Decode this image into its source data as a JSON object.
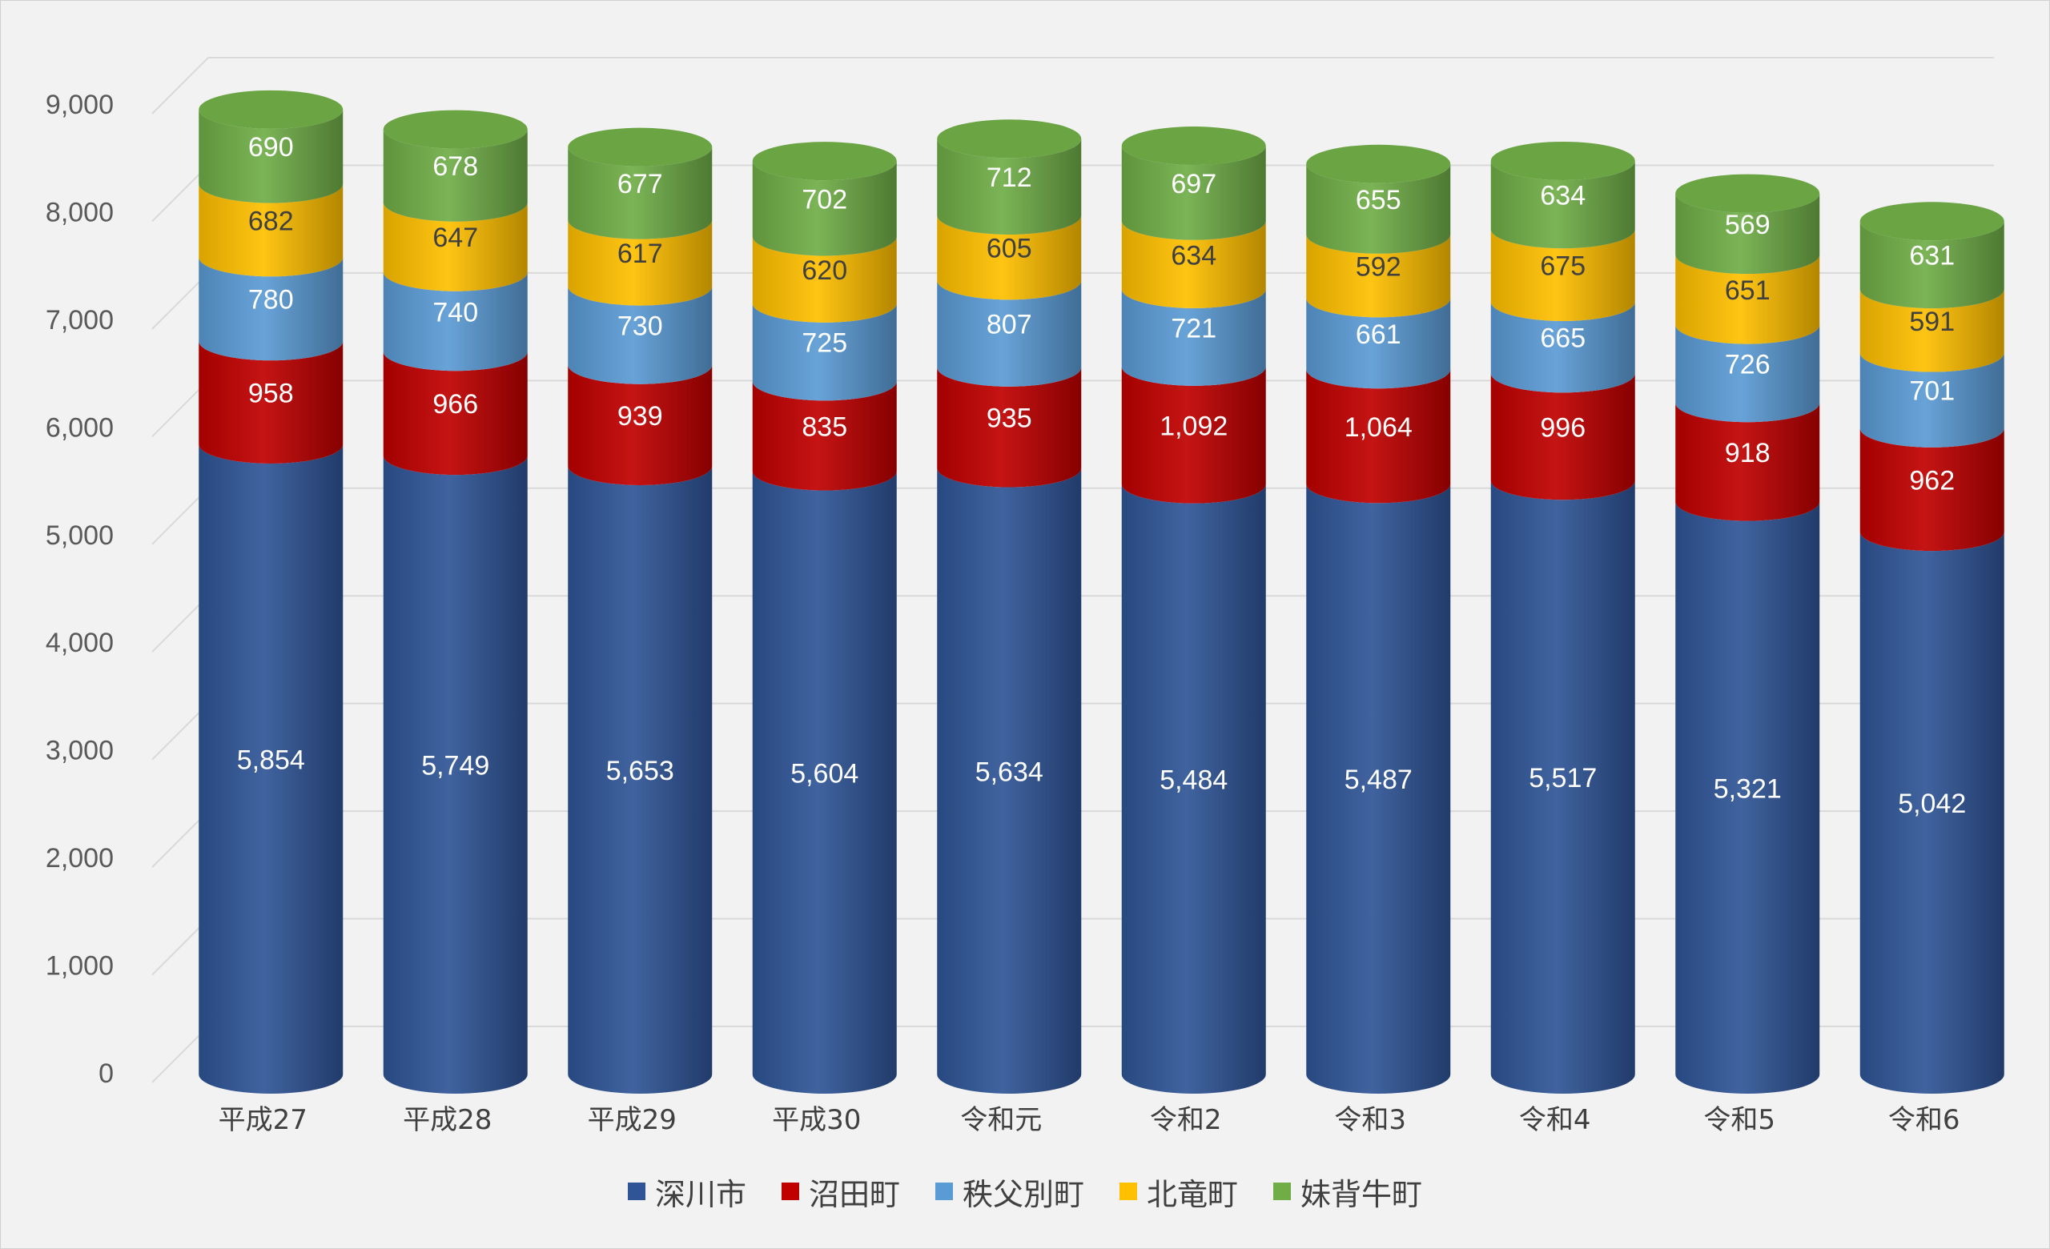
{
  "chart_data": {
    "type": "bar",
    "stacked": true,
    "style": "3d-cylinder",
    "categories": [
      "平成27",
      "平成28",
      "平成29",
      "平成30",
      "令和元",
      "令和2",
      "令和3",
      "令和4",
      "令和5",
      "令和6"
    ],
    "series": [
      {
        "name": "深川市",
        "color": "#2f5597",
        "values": [
          5854,
          5749,
          5653,
          5604,
          5634,
          5484,
          5487,
          5517,
          5321,
          5042
        ],
        "labels": [
          "5,854",
          "5,749",
          "5,653",
          "5,604",
          "5,634",
          "5,484",
          "5,487",
          "5,517",
          "5,321",
          "5,042"
        ]
      },
      {
        "name": "沼田町",
        "color": "#c00000",
        "values": [
          958,
          966,
          939,
          835,
          935,
          1092,
          1064,
          996,
          918,
          962
        ],
        "labels": [
          "958",
          "966",
          "939",
          "835",
          "935",
          "1,092",
          "1,064",
          "996",
          "918",
          "962"
        ]
      },
      {
        "name": "秩父別町",
        "color": "#5b9bd5",
        "values": [
          780,
          740,
          730,
          725,
          807,
          721,
          661,
          665,
          726,
          701
        ],
        "labels": [
          "780",
          "740",
          "730",
          "725",
          "807",
          "721",
          "661",
          "665",
          "726",
          "701"
        ]
      },
      {
        "name": "北竜町",
        "color": "#ffc000",
        "values": [
          682,
          647,
          617,
          620,
          605,
          634,
          592,
          675,
          651,
          591
        ],
        "labels": [
          "682",
          "647",
          "617",
          "620",
          "605",
          "634",
          "592",
          "675",
          "651",
          "591"
        ]
      },
      {
        "name": "妹背牛町",
        "color": "#70ad47",
        "values": [
          690,
          678,
          677,
          702,
          712,
          697,
          655,
          634,
          569,
          631
        ],
        "labels": [
          "690",
          "678",
          "677",
          "702",
          "712",
          "697",
          "655",
          "634",
          "569",
          "631"
        ]
      }
    ],
    "yticks": [
      {
        "value": 0,
        "label": "0"
      },
      {
        "value": 1000,
        "label": "1,000"
      },
      {
        "value": 2000,
        "label": "2,000"
      },
      {
        "value": 3000,
        "label": "3,000"
      },
      {
        "value": 4000,
        "label": "4,000"
      },
      {
        "value": 5000,
        "label": "5,000"
      },
      {
        "value": 6000,
        "label": "6,000"
      },
      {
        "value": 7000,
        "label": "7,000"
      },
      {
        "value": 8000,
        "label": "8,000"
      },
      {
        "value": 9000,
        "label": "9,000"
      }
    ],
    "ylim": [
      0,
      9000
    ],
    "grid": true,
    "legend_position": "bottom",
    "title": "",
    "xlabel": "",
    "ylabel": ""
  }
}
